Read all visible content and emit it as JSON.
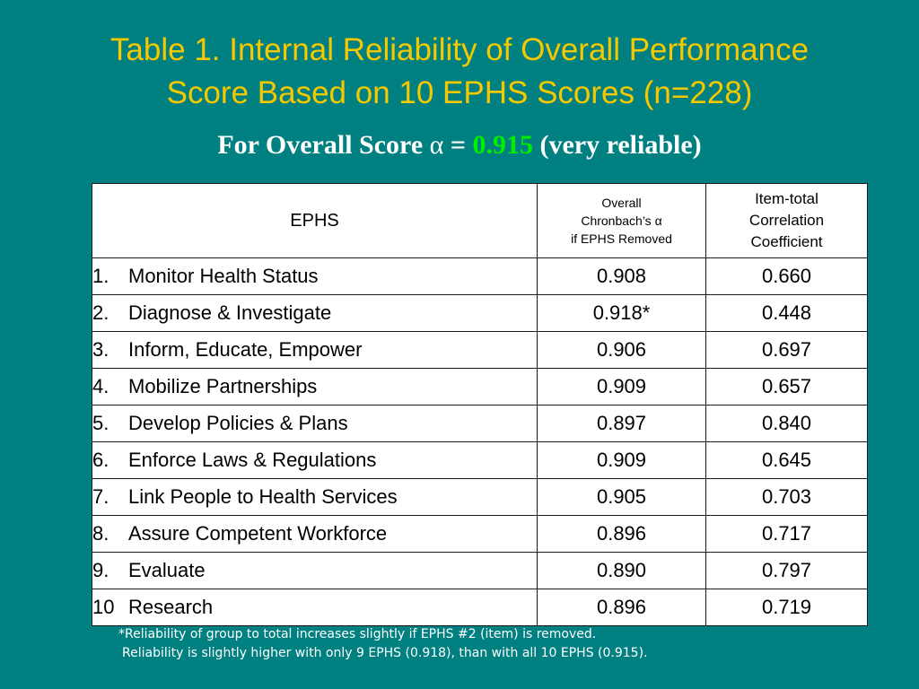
{
  "slide": {
    "title_line1": "Table 1. Internal Reliability of Overall Performance",
    "title_line2": "Score Based on 10 EPHS Scores (n=228)",
    "subtitle": {
      "prefix": "For Overall Score ",
      "alpha": "α",
      "equals": " = ",
      "value": "0.915",
      "suffix": " (very reliable)"
    },
    "colors": {
      "background": "#008080",
      "title": "#f5c800",
      "highlight": "#00ee00"
    }
  },
  "table": {
    "headers": {
      "ephs": "EPHS",
      "alpha_l1": "Overall",
      "alpha_l2": "Chronbach’s α",
      "alpha_l3": "if EPHS Removed",
      "corr_l1": "Item-total",
      "corr_l2": "Correlation",
      "corr_l3": "Coefficient"
    },
    "rows": [
      {
        "num": "1.",
        "name": "Monitor Health Status",
        "alpha": "0.908",
        "corr": "0.660"
      },
      {
        "num": "2.",
        "name": "Diagnose & Investigate",
        "alpha": "0.918*",
        "corr": "0.448"
      },
      {
        "num": "3.",
        "name": "Inform, Educate, Empower",
        "alpha": "0.906",
        "corr": "0.697"
      },
      {
        "num": "4.",
        "name": "Mobilize Partnerships",
        "alpha": "0.909",
        "corr": "0.657"
      },
      {
        "num": "5.",
        "name": "Develop Policies & Plans",
        "alpha": "0.897",
        "corr": "0.840"
      },
      {
        "num": "6.",
        "name": "Enforce Laws & Regulations",
        "alpha": "0.909",
        "corr": "0.645"
      },
      {
        "num": "7.",
        "name": "Link People to Health Services",
        "alpha": "0.905",
        "corr": "0.703"
      },
      {
        "num": "8.",
        "name": "Assure Competent Workforce",
        "alpha": "0.896",
        "corr": "0.717"
      },
      {
        "num": "9.",
        "name": "Evaluate",
        "alpha": "0.890",
        "corr": "0.797"
      },
      {
        "num": "10",
        "name": "Research",
        "alpha": "0.896",
        "corr": "0.719"
      }
    ]
  },
  "footnote": {
    "line1": "*Reliability of group to total increases slightly if EPHS #2 (item) is removed.",
    "line2": "Reliability is slightly higher with only 9 EPHS (0.918), than with all 10 EPHS (0.915)."
  }
}
